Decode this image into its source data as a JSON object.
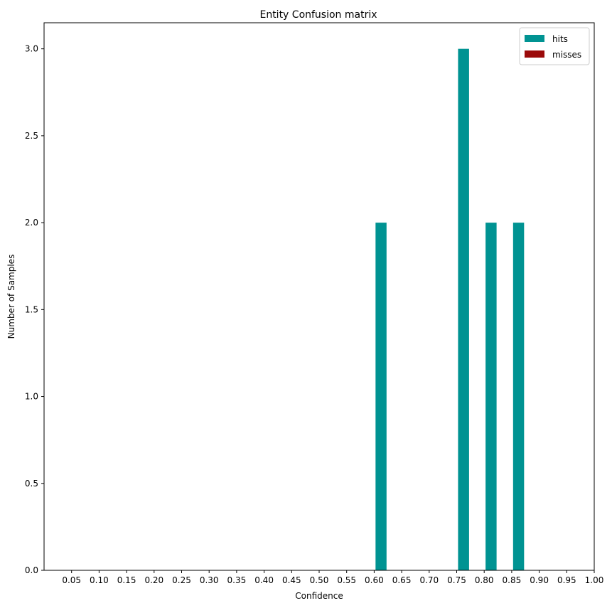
{
  "chart_data": {
    "type": "bar",
    "title": "Entity Confusion matrix",
    "xlabel": "Confidence",
    "ylabel": "Number of Samples",
    "x_ticks": [
      "0.05",
      "0.10",
      "0.15",
      "0.20",
      "0.25",
      "0.30",
      "0.35",
      "0.40",
      "0.45",
      "0.50",
      "0.55",
      "0.60",
      "0.65",
      "0.70",
      "0.75",
      "0.80",
      "0.85",
      "0.90",
      "0.95",
      "1.00"
    ],
    "y_ticks": [
      "0.0",
      "0.5",
      "1.0",
      "1.5",
      "2.0",
      "2.5",
      "3.0"
    ],
    "xlim": [
      0.0,
      1.0
    ],
    "ylim": [
      0,
      3.15
    ],
    "grid": false,
    "legend_position": "top-right",
    "series": [
      {
        "name": "hits",
        "color": "#009392",
        "x": [
          0.6125,
          0.7625,
          0.8125,
          0.8625
        ],
        "values": [
          2,
          3,
          2,
          2
        ]
      },
      {
        "name": "misses",
        "color": "#9b0a0a",
        "x": [],
        "values": []
      }
    ]
  }
}
